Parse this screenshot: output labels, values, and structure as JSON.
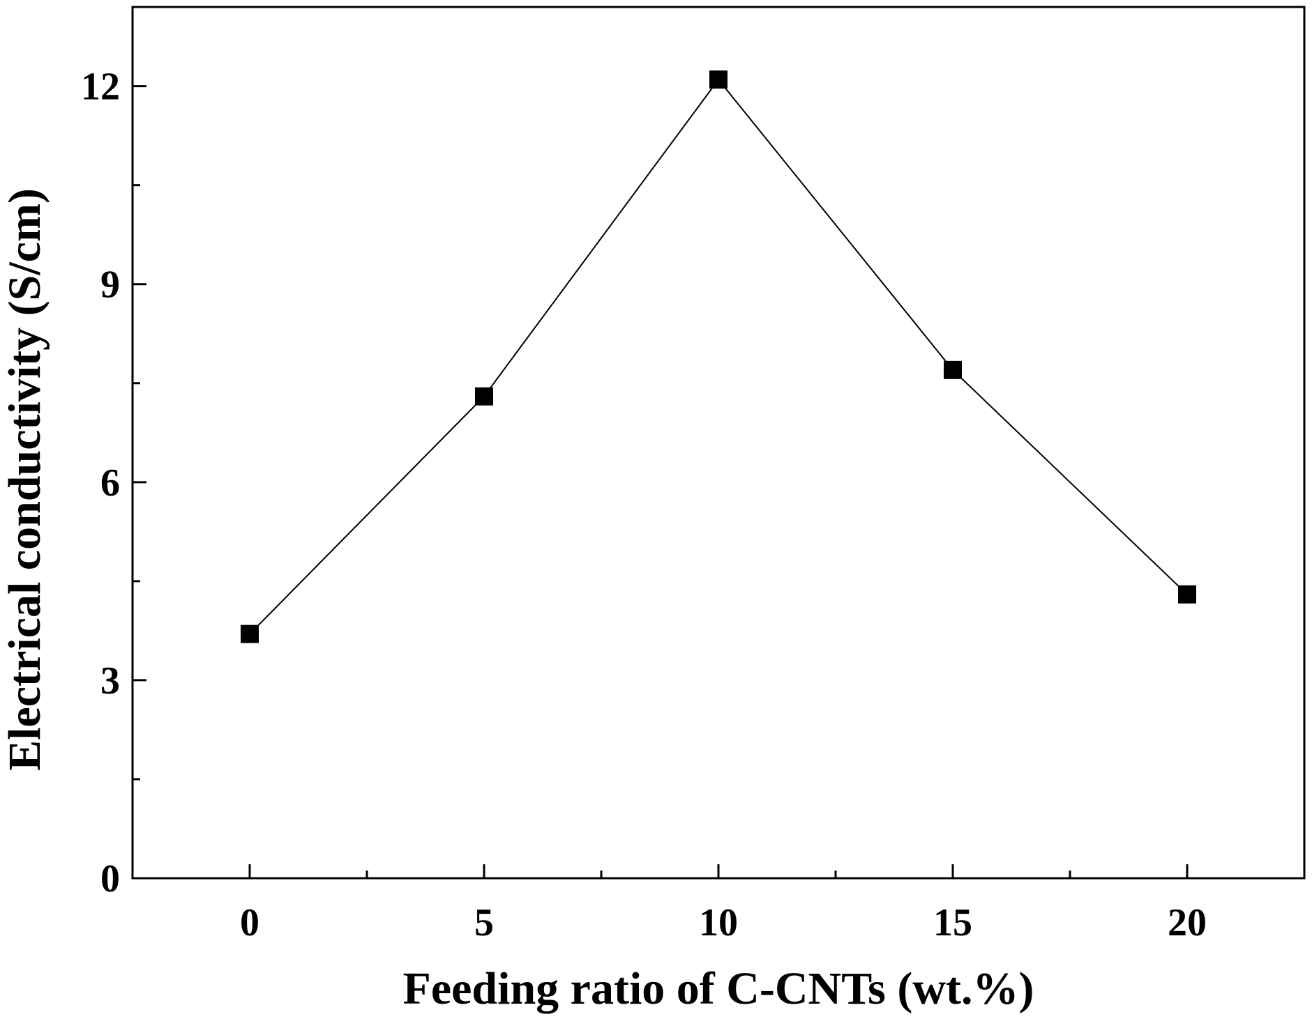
{
  "chart_data": {
    "type": "line",
    "title": "",
    "xlabel": "Feeding ratio of C-CNTs (wt.%)",
    "ylabel": "Electrical conductivity (S/cm)",
    "xlim": [
      -2.5,
      22.5
    ],
    "ylim": [
      0,
      13.2
    ],
    "x_ticks": [
      0,
      5,
      10,
      15,
      20
    ],
    "x_tick_labels": [
      "0",
      "5",
      "10",
      "15",
      "20"
    ],
    "x_minor_ticks": [
      2.5,
      7.5,
      12.5,
      17.5
    ],
    "y_ticks": [
      0,
      3,
      6,
      9,
      12
    ],
    "y_tick_labels": [
      "0",
      "3",
      "6",
      "9",
      "12"
    ],
    "y_minor_ticks": [
      1.5,
      4.5,
      7.5,
      10.5
    ],
    "grid": false,
    "series": [
      {
        "name": "Electrical conductivity",
        "marker": "square",
        "color": "#000000",
        "x": [
          0,
          5,
          10,
          15,
          20
        ],
        "y": [
          3.7,
          7.3,
          12.1,
          7.7,
          4.3
        ]
      }
    ]
  }
}
